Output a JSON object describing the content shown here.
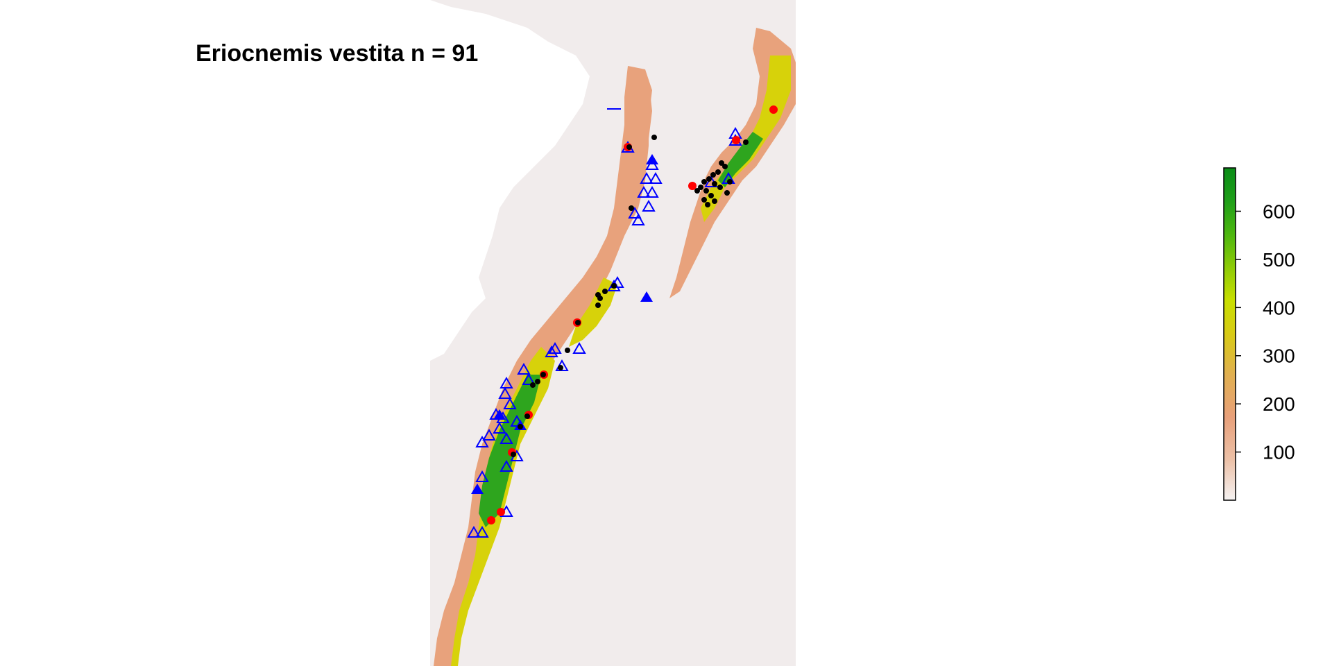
{
  "title": "Eriocnemis vestita n = 91",
  "colors": {
    "background_land": "#f1ecec",
    "low": "#e8a27c",
    "mid": "#d7d20a",
    "high": "#1d9a1a",
    "triangle_outline": "#0000ff",
    "filled_triangle": "#0000ff",
    "red_dot": "#ff0000",
    "black_dot": "#000000"
  },
  "legend": {
    "type": "colorbar",
    "ticks": [
      "100",
      "200",
      "300",
      "400",
      "500",
      "600"
    ],
    "tick_values": [
      100,
      200,
      300,
      400,
      500,
      600
    ],
    "range": [
      0,
      690
    ],
    "colors": [
      "#f5f2f2",
      "#ecc1a8",
      "#e8a07a",
      "#e1b04f",
      "#d8cb15",
      "#c9df00",
      "#8ecb06",
      "#4db70f",
      "#1f9f19",
      "#0a8c17"
    ]
  },
  "markers": {
    "black_dot_count_note": "",
    "legend_entries": []
  }
}
